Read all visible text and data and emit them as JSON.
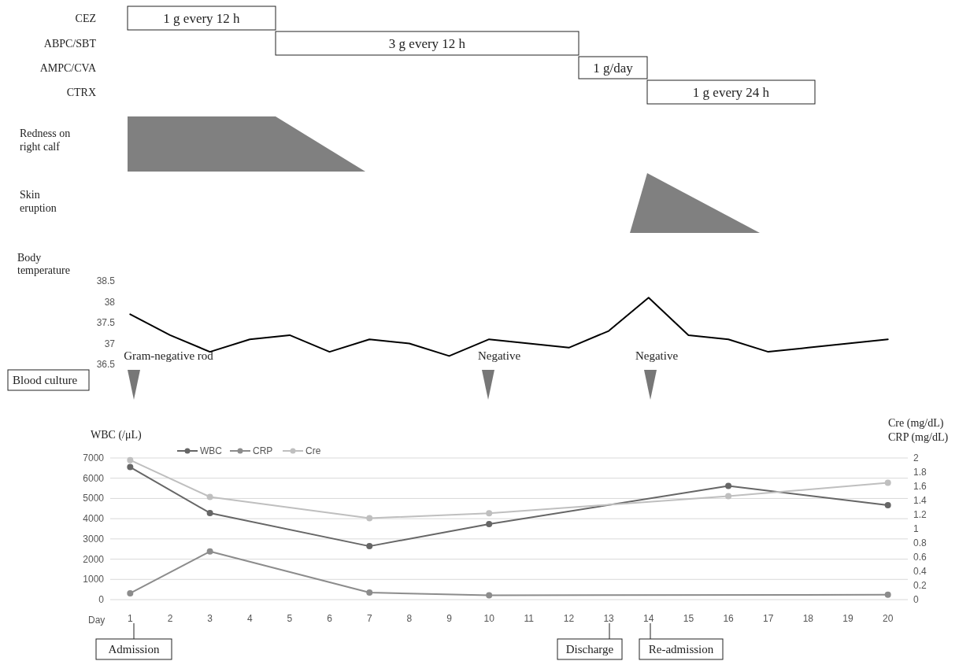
{
  "chart_data": [
    {
      "type": "other",
      "annotations": [
        "CEZ",
        "1 g every 12 h",
        "ABPC/SBT",
        "3 g every 12 h",
        "AMPC/CVA",
        "1 g/day",
        "CTRX",
        "1 g every 24 h",
        "Redness on right calf",
        "Skin eruption"
      ]
    },
    {
      "type": "line",
      "ylabel": "Body temperature",
      "categories": [
        null,
        null,
        null,
        null,
        null,
        null,
        null,
        null,
        null,
        null,
        null,
        null,
        null,
        null,
        null,
        null,
        null,
        null,
        null,
        null
      ],
      "values": [
        37.7,
        37.2,
        36.8,
        37.1,
        37.2,
        36.8,
        37.1,
        37.0,
        36.7,
        37.1,
        37.0,
        36.9,
        37.3,
        38.1,
        37.2,
        37.1,
        36.8,
        36.9,
        37.0,
        37.1
      ],
      "color": "#000000",
      "ylim": [
        36.5,
        38.5
      ],
      "yticks": [
        36.5,
        37,
        37.5,
        38,
        38.5
      ],
      "tick_labels": "y",
      "annotations": [
        "Blood culture",
        "Gram-negative rod",
        "Negative",
        "Negative"
      ]
    },
    {
      "type": "line",
      "xlabel": "Day",
      "ylabel": "WBC (/μL)",
      "y2label": "Cre (mg/dL)\nCRP (mg/dL)",
      "legend": "top left",
      "grid": "y",
      "marker": "circle",
      "xlim": [
        0.5,
        20.5
      ],
      "xticks": [
        1,
        2,
        3,
        4,
        5,
        6,
        7,
        8,
        9,
        10,
        11,
        12,
        13,
        14,
        15,
        16,
        17,
        18,
        19,
        20
      ],
      "ylim": [
        0,
        7000
      ],
      "yticks": [
        0,
        1000,
        2000,
        3000,
        4000,
        5000,
        6000,
        7000
      ],
      "y2lim": [
        0,
        2
      ],
      "y2ticks": [
        0,
        0.2,
        0.4,
        0.6,
        0.8,
        1,
        1.2,
        1.4,
        1.6,
        1.8,
        2
      ],
      "series": [
        {
          "name": "WBC",
          "color": "#666666",
          "x": [
            1,
            3,
            7,
            10,
            16,
            20
          ],
          "values": [
            6550,
            4280,
            2640,
            3730,
            5620,
            4670
          ]
        },
        {
          "name": "CRP",
          "color": "#8c8c8c",
          "axis": "y2",
          "x": [
            1,
            3,
            7,
            10,
            20
          ],
          "values": [
            0.09,
            0.68,
            0.1,
            0.06,
            0.07
          ]
        },
        {
          "name": "Cre",
          "color": "#bfbfbf",
          "axis": "y2",
          "x": [
            1,
            3,
            7,
            10,
            16,
            20
          ],
          "values": [
            1.97,
            1.45,
            1.15,
            1.22,
            1.46,
            1.65
          ]
        }
      ],
      "annotations": [
        "Admission",
        "Discharge",
        "Re-admission"
      ]
    }
  ]
}
